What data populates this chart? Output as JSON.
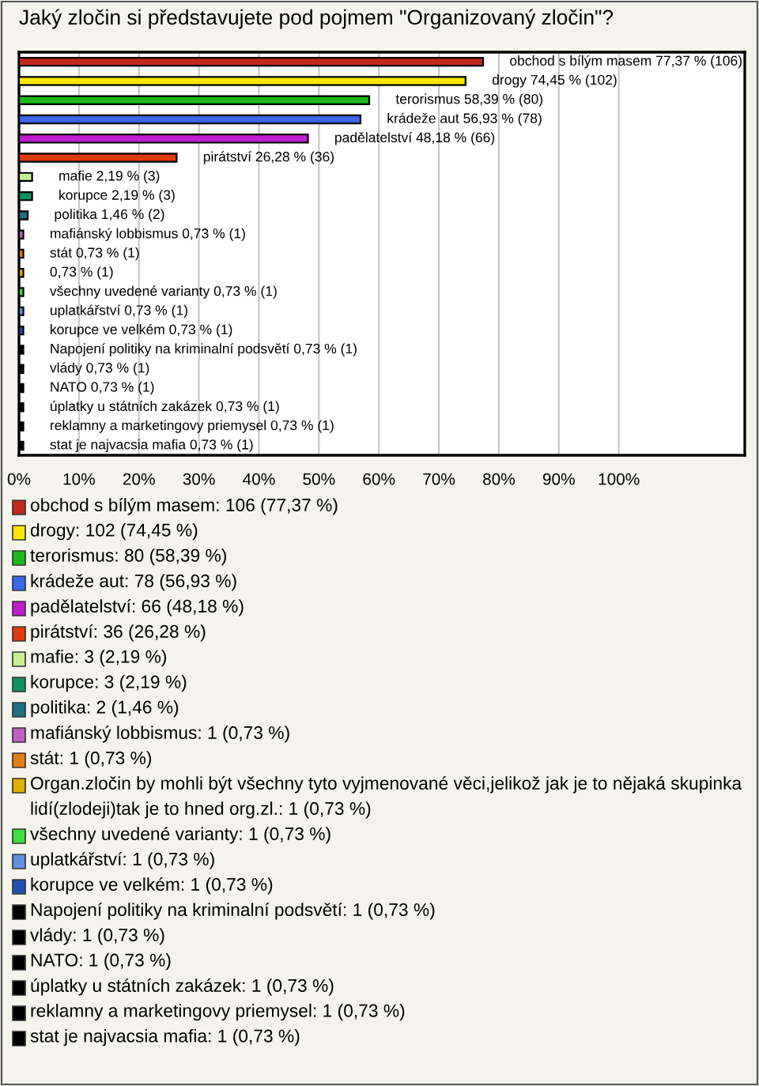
{
  "chart_data": {
    "type": "bar",
    "orientation": "horizontal",
    "title": "Jaký zločin si představujete pod pojmem \"Organizovaný zločin\"?",
    "categories": [
      "obchod s bílým masem",
      "drogy",
      "terorismus",
      "krádeže aut",
      "padělatelství",
      "pirátství",
      "mafie",
      "korupce",
      "politika",
      "mafiánský lobbismus",
      "stát",
      null,
      "všechny uvedené varianty",
      "uplatkářství",
      "korupce ve velkém",
      "Napojení politiky na kriminalní podsvětí",
      "vlády",
      "NATO",
      "úplatky u státních zakázek",
      "reklamny a marketingovy priemysel",
      "stat je najvacsia mafia"
    ],
    "values": [
      77.37,
      74.45,
      58.39,
      56.93,
      48.18,
      26.28,
      2.19,
      2.19,
      1.46,
      0.73,
      0.73,
      0.73,
      0.73,
      0.73,
      0.73,
      0.73,
      0.73,
      0.73,
      0.73,
      0.73,
      0.73
    ],
    "value_labels": [
      "77,37 % (106)",
      "74,45 % (102)",
      "58,39 % (80)",
      "56,93 % (78)",
      "48,18 % (66)",
      "26,28 % (36)",
      "2,19 % (3)",
      "2,19 % (3)",
      "1,46 % (2)",
      "0,73 % (1)",
      "0,73 % (1)",
      "0,73 % (1)",
      "0,73 % (1)",
      "0,73 % (1)",
      "0,73 % (1)",
      "0,73 % (1)",
      "0,73 % (1)",
      "0,73 % (1)",
      "0,73 % (1)",
      "0,73 % (1)",
      "0,73 % (1)"
    ],
    "colors": [
      "#c0281c",
      "#ffe600",
      "#1cb81c",
      "#3a66e8",
      "#c01cd0",
      "#e03c10",
      "#c8f090",
      "#109060",
      "#1c7080",
      "#c060c0",
      "#e08010",
      "#e0b000",
      "#40e040",
      "#6090e0",
      "#2050b0",
      "#000000",
      "#000000",
      "#000000",
      "#000000",
      "#000000",
      "#000000"
    ],
    "xlim": [
      0,
      121
    ],
    "xticks": [
      {
        "value": 0,
        "label": "0%"
      },
      {
        "value": 10,
        "label": "10%"
      },
      {
        "value": 20,
        "label": "20%"
      },
      {
        "value": 30,
        "label": "30%"
      },
      {
        "value": 40,
        "label": "40%"
      },
      {
        "value": 50,
        "label": "50%"
      },
      {
        "value": 60,
        "label": "60%"
      },
      {
        "value": 70,
        "label": "70%"
      },
      {
        "value": 80,
        "label": "80%"
      },
      {
        "value": 90,
        "label": "90%"
      },
      {
        "value": 100,
        "label": "100%"
      }
    ],
    "grid": "x",
    "tick_labels": "x",
    "annotations": [
      "obchod s bílým masem: 106 (77,37 %)",
      "drogy: 102 (74,45 %)",
      "terorismus: 80 (58,39 %)",
      "krádeže aut: 78 (56,93 %)",
      "padělatelství: 66 (48,18 %)",
      "pirátství: 36 (26,28 %)",
      "mafie: 3 (2,19 %)",
      "korupce: 3 (2,19 %)",
      "politika: 2 (1,46 %)",
      "mafiánský lobbismus: 1 (0,73 %)",
      "stát: 1 (0,73 %)",
      "Organ.zločin by mohli být všechny tyto vyjmenované věci,jelikož jak je to nějaká skupinka lidí(zlodeji)tak je to hned org.zl.: 1 (0,73 %)",
      "všechny uvedené varianty: 1 (0,73 %)",
      "uplatkářství: 1 (0,73 %)",
      "korupce ve velkém: 1 (0,73 %)",
      "Napojení politiky na kriminalní podsvětí: 1 (0,73 %)",
      "vlády: 1 (0,73 %)",
      "NATO: 1 (0,73 %)",
      "úplatky u státních zakázek: 1 (0,73 %)",
      "reklamny a marketingovy priemysel: 1 (0,73 %)",
      "stat je najvacsia mafia: 1 (0,73 %)"
    ]
  }
}
